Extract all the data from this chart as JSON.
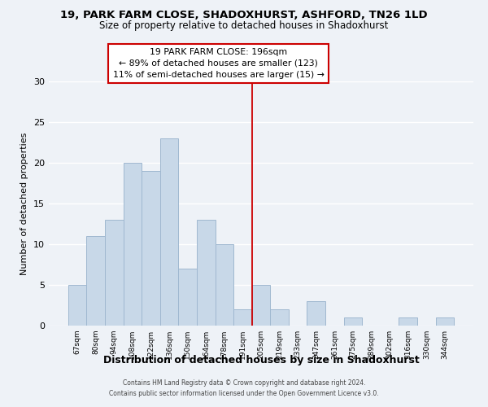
{
  "title1": "19, PARK FARM CLOSE, SHADOXHURST, ASHFORD, TN26 1LD",
  "title2": "Size of property relative to detached houses in Shadoxhurst",
  "xlabel": "Distribution of detached houses by size in Shadoxhurst",
  "ylabel": "Number of detached properties",
  "bar_labels": [
    "67sqm",
    "80sqm",
    "94sqm",
    "108sqm",
    "122sqm",
    "136sqm",
    "150sqm",
    "164sqm",
    "178sqm",
    "191sqm",
    "205sqm",
    "219sqm",
    "233sqm",
    "247sqm",
    "261sqm",
    "275sqm",
    "289sqm",
    "302sqm",
    "316sqm",
    "330sqm",
    "344sqm"
  ],
  "bar_heights": [
    5,
    11,
    13,
    20,
    19,
    23,
    7,
    13,
    10,
    2,
    5,
    2,
    0,
    3,
    0,
    1,
    0,
    0,
    1,
    0,
    1
  ],
  "bar_color": "#c8d8e8",
  "bar_edgecolor": "#a0b8d0",
  "vline_x": 9.5,
  "vline_color": "#cc0000",
  "ylim": [
    0,
    30
  ],
  "yticks": [
    0,
    5,
    10,
    15,
    20,
    25,
    30
  ],
  "annotation_line1": "19 PARK FARM CLOSE: 196sqm",
  "annotation_line2": "← 89% of detached houses are smaller (123)",
  "annotation_line3": "11% of semi-detached houses are larger (15) →",
  "footer1": "Contains HM Land Registry data © Crown copyright and database right 2024.",
  "footer2": "Contains public sector information licensed under the Open Government Licence v3.0.",
  "background_color": "#eef2f7"
}
